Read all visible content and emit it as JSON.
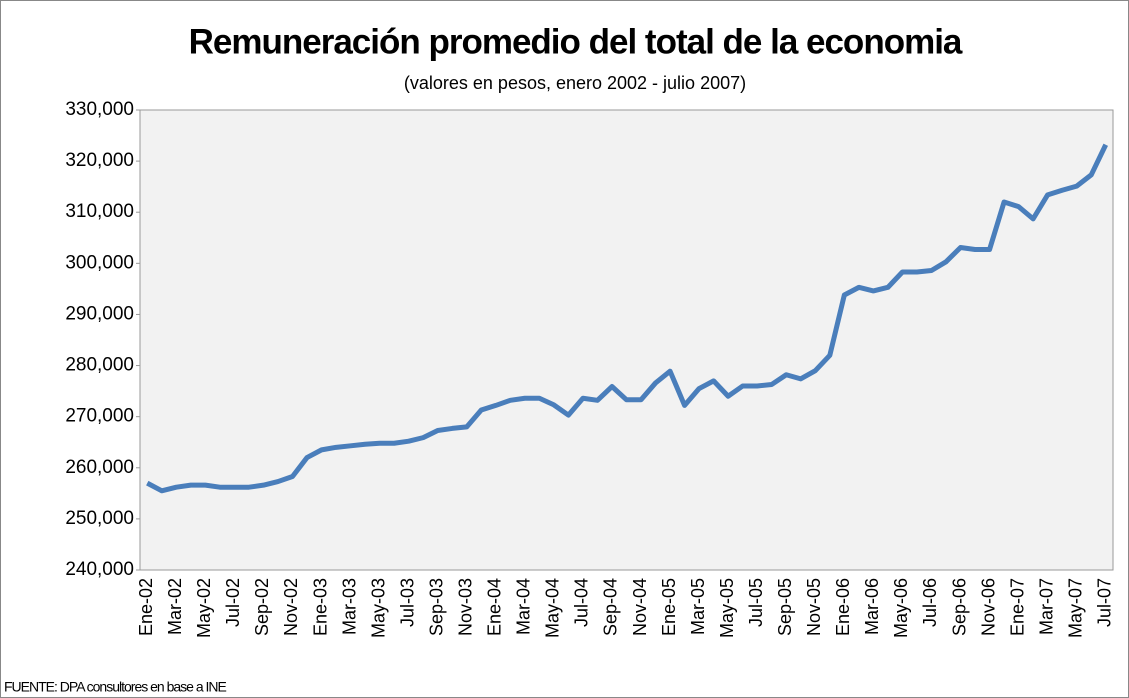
{
  "chart_data": {
    "type": "line",
    "title": "Remuneración promedio del total de la economia",
    "subtitle": "(valores en pesos, enero 2002 - julio 2007)",
    "source": "FUENTE: DPA consultores en base a INE",
    "categories": [
      "Ene-02",
      null,
      "Mar-02",
      null,
      "May-02",
      null,
      "Jul-02",
      null,
      "Sep-02",
      null,
      "Nov-02",
      null,
      "Ene-03",
      null,
      "Mar-03",
      null,
      "May-03",
      null,
      "Jul-03",
      null,
      "Sep-03",
      null,
      "Nov-03",
      null,
      "Ene-04",
      null,
      "Mar-04",
      null,
      "May-04",
      null,
      "Jul-04",
      null,
      "Sep-04",
      null,
      "Nov-04",
      null,
      "Ene-05",
      null,
      "Mar-05",
      null,
      "May-05",
      null,
      "Jul-05",
      null,
      "Sep-05",
      null,
      "Nov-05",
      null,
      "Ene-06",
      null,
      "Mar-06",
      null,
      "May-06",
      null,
      "Jul-06",
      null,
      "Sep-06",
      null,
      "Nov-06",
      null,
      "Ene-07",
      null,
      "Mar-07",
      null,
      "May-07",
      null,
      "Jul-07"
    ],
    "series": [
      {
        "color": "#4a7ebb",
        "values": [
          257000,
          255500,
          256200,
          256600,
          256600,
          256200,
          256200,
          256200,
          256600,
          257300,
          258300,
          262000,
          263500,
          264000,
          264300,
          264600,
          264800,
          264800,
          265200,
          265900,
          267300,
          267700,
          268000,
          271300,
          272200,
          273200,
          273600,
          273600,
          272300,
          270300,
          273600,
          273200,
          275900,
          273300,
          273300,
          276600,
          278900,
          272200,
          275500,
          277000,
          274000,
          276000,
          276000,
          276300,
          278200,
          277400,
          279000,
          282000,
          293800,
          295300,
          294600,
          295300,
          298300,
          298300,
          298600,
          300300,
          303100,
          302700,
          302700,
          312000,
          311100,
          308700,
          313400,
          314300,
          315100,
          317300,
          323200
        ]
      }
    ],
    "ylim": [
      240000,
      330000
    ],
    "yticks": [
      {
        "value": 240000,
        "label": "240,000"
      },
      {
        "value": 250000,
        "label": "250,000"
      },
      {
        "value": 260000,
        "label": "260,000"
      },
      {
        "value": 270000,
        "label": "270,000"
      },
      {
        "value": 280000,
        "label": "280,000"
      },
      {
        "value": 290000,
        "label": "290,000"
      },
      {
        "value": 300000,
        "label": "300,000"
      },
      {
        "value": 310000,
        "label": "310,000"
      },
      {
        "value": 320000,
        "label": "320,000"
      },
      {
        "value": 330000,
        "label": "330,000"
      }
    ],
    "grid": false
  }
}
